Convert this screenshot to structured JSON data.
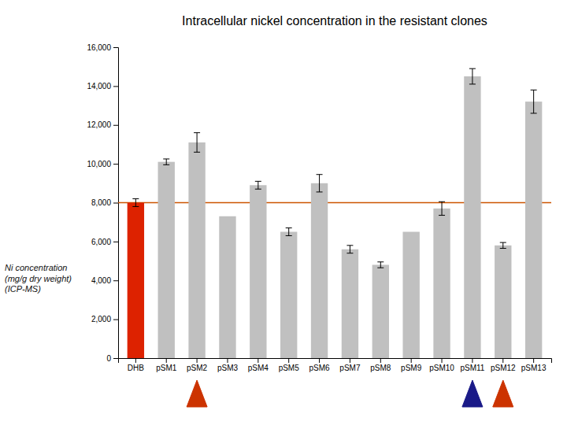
{
  "chart_data": {
    "type": "bar",
    "title": "Intracellular nickel concentration in the resistant clones",
    "ylabel": "Ni concentration\n(mg/g dry weight)\n(ICP-MS)",
    "categories": [
      "DHB",
      "pSM1",
      "pSM2",
      "pSM3",
      "pSM4",
      "pSM5",
      "pSM6",
      "pSM7",
      "pSM8",
      "pSM9",
      "pSM10",
      "pSM11",
      "pSM12",
      "pSM13"
    ],
    "values": [
      8000,
      10100,
      11100,
      7300,
      8900,
      6500,
      9000,
      5600,
      4800,
      6500,
      7700,
      14500,
      5800,
      13200
    ],
    "errors": [
      200,
      150,
      500,
      0,
      200,
      200,
      450,
      200,
      150,
      0,
      350,
      400,
      150,
      600
    ],
    "colors": [
      "#dd2200",
      "#c0c0c0",
      "#c0c0c0",
      "#c0c0c0",
      "#c0c0c0",
      "#c0c0c0",
      "#c0c0c0",
      "#c0c0c0",
      "#c0c0c0",
      "#c0c0c0",
      "#c0c0c0",
      "#c0c0c0",
      "#c0c0c0",
      "#c0c0c0"
    ],
    "reference_line": {
      "value": 8000,
      "color": "#cc5500"
    },
    "arrows": [
      {
        "category": "pSM2",
        "color": "#cc3300"
      },
      {
        "category": "pSM11",
        "color": "#1a1a88"
      },
      {
        "category": "pSM12",
        "color": "#cc3300"
      }
    ],
    "ylim": [
      0,
      16000
    ],
    "yticks": [
      0,
      {
        "value": 2000,
        "label": "2,000"
      },
      {
        "value": 4000,
        "label": "4,000"
      },
      {
        "value": 6000,
        "label": "6,000"
      },
      {
        "value": 8000,
        "label": "8,000"
      },
      {
        "value": 10000,
        "label": "10,000"
      },
      {
        "value": 12000,
        "label": "12,000"
      },
      {
        "value": 14000,
        "label": "14,000"
      },
      {
        "value": 16000,
        "label": "16,000"
      }
    ],
    "grid": false
  }
}
